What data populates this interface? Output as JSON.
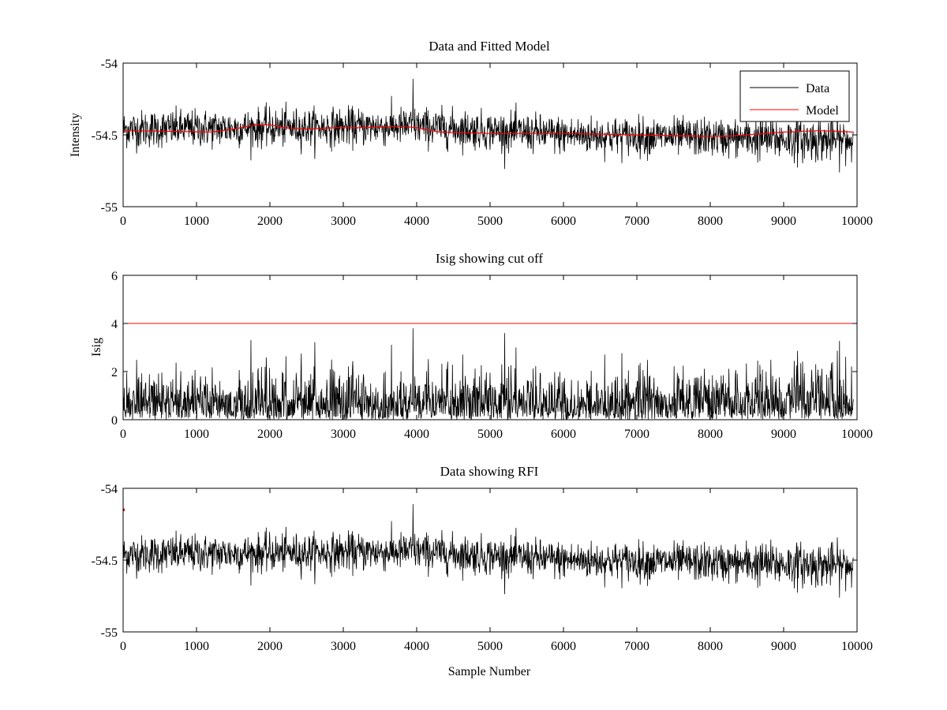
{
  "chart_data": [
    {
      "type": "line",
      "title": "Data and Fitted Model",
      "xlabel": "",
      "ylabel": "Intensity",
      "xlim": [
        0,
        10000
      ],
      "ylim": [
        -55,
        -54
      ],
      "xticks": [
        0,
        1000,
        2000,
        3000,
        4000,
        5000,
        6000,
        7000,
        8000,
        9000,
        10000
      ],
      "xtick_labels": [
        "0",
        "1000",
        "2000",
        "3000",
        "4000",
        "5000",
        "6000",
        "7000",
        "8000",
        "9000",
        "10000"
      ],
      "yticks": [
        -55,
        -54.5,
        -54
      ],
      "ytick_labels": [
        "-55",
        "-54.5",
        "-54"
      ],
      "legend": {
        "position": "top-right",
        "entries": [
          "Data",
          "Model"
        ]
      },
      "colors": {
        "Data": "#000000",
        "Model": "#ff0000"
      },
      "series": [
        {
          "name": "Data",
          "x_range": [
            0,
            9950
          ],
          "baseline_points": [
            [
              0,
              -54.46
            ],
            [
              4000,
              -54.44
            ],
            [
              6000,
              -54.5
            ],
            [
              8200,
              -54.52
            ],
            [
              9950,
              -54.54
            ]
          ],
          "noise_sd": 0.065,
          "max": -54.11,
          "min": -54.81
        },
        {
          "name": "Model",
          "x": [
            0,
            1200,
            1500,
            1800,
            2000,
            2200,
            2500,
            2900,
            3200,
            3800,
            4000,
            4300,
            5000,
            6000,
            7000,
            8000,
            8200,
            8500,
            9000,
            9500,
            9950
          ],
          "values": [
            -54.47,
            -54.48,
            -54.46,
            -54.43,
            -54.43,
            -54.45,
            -54.46,
            -54.45,
            -54.45,
            -54.44,
            -54.45,
            -54.48,
            -54.49,
            -54.49,
            -54.5,
            -54.51,
            -54.51,
            -54.5,
            -54.48,
            -54.47,
            -54.48
          ]
        }
      ]
    },
    {
      "type": "line",
      "title": "Isig showing cut off",
      "xlabel": "",
      "ylabel": "Isig",
      "xlim": [
        0,
        10000
      ],
      "ylim": [
        0,
        6
      ],
      "xticks": [
        0,
        1000,
        2000,
        3000,
        4000,
        5000,
        6000,
        7000,
        8000,
        9000,
        10000
      ],
      "xtick_labels": [
        "0",
        "1000",
        "2000",
        "3000",
        "4000",
        "5000",
        "6000",
        "7000",
        "8000",
        "9000",
        "10000"
      ],
      "yticks": [
        0,
        2,
        4,
        6
      ],
      "ytick_labels": [
        "0",
        "2",
        "4",
        "6"
      ],
      "colors": {
        "Isig": "#000000",
        "Cutoff": "#ff0000"
      },
      "series": [
        {
          "name": "Isig",
          "x_range": [
            0,
            9950
          ],
          "typical_range": [
            0,
            2
          ],
          "max": 3.8
        },
        {
          "name": "Cutoff",
          "value": 4
        }
      ]
    },
    {
      "type": "line",
      "title": "Data showing RFI",
      "xlabel": "Sample Number",
      "ylabel": "",
      "xlim": [
        0,
        10000
      ],
      "ylim": [
        -55,
        -54
      ],
      "xticks": [
        0,
        1000,
        2000,
        3000,
        4000,
        5000,
        6000,
        7000,
        8000,
        9000,
        10000
      ],
      "xtick_labels": [
        "0",
        "1000",
        "2000",
        "3000",
        "4000",
        "5000",
        "6000",
        "7000",
        "8000",
        "9000",
        "10000"
      ],
      "yticks": [
        -55,
        -54.5,
        -54
      ],
      "ytick_labels": [
        "-55",
        "-54.5",
        "-54"
      ],
      "colors": {
        "Data": "#000000",
        "RFI": "#cc0000"
      },
      "series": [
        {
          "name": "Data",
          "x_range": [
            0,
            9950
          ],
          "same_as": "panel 1 Data"
        },
        {
          "name": "RFI",
          "x": [
            5
          ],
          "values": [
            -54.15
          ]
        }
      ]
    }
  ]
}
